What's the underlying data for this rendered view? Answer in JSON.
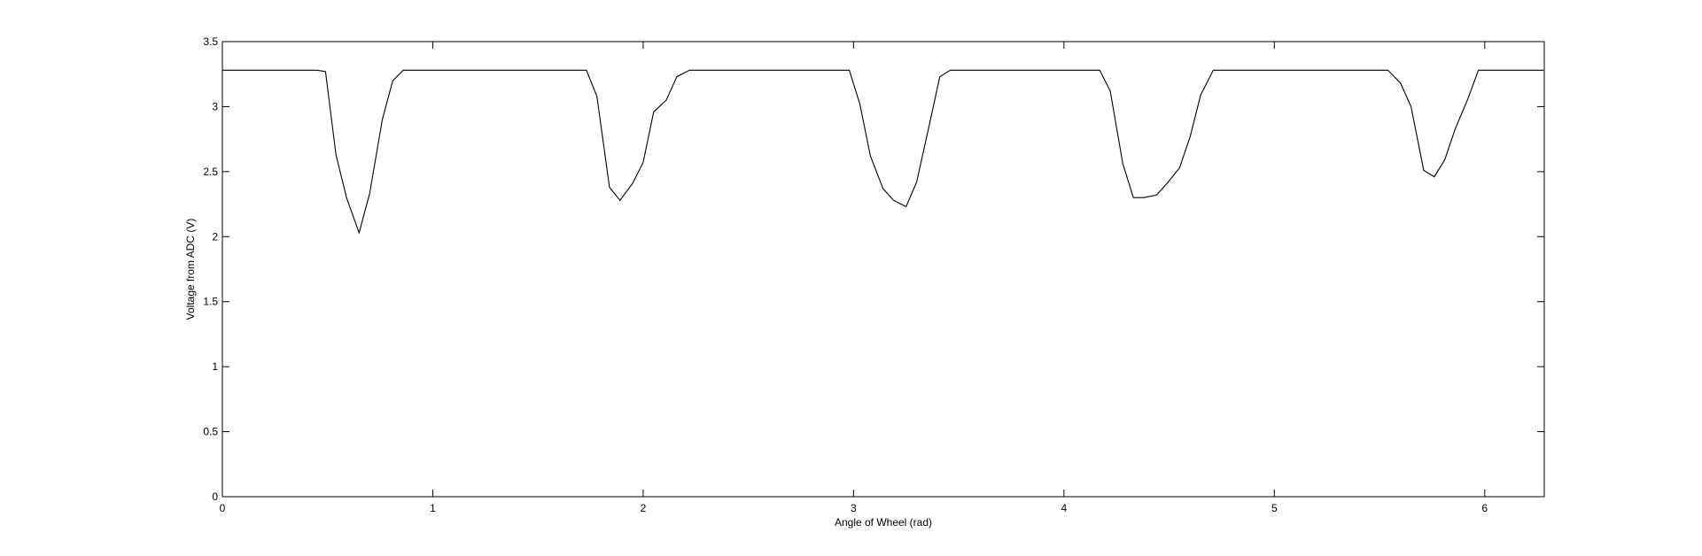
{
  "chart_data": {
    "type": "line",
    "title": "",
    "xlabel": "Angle of Wheel (rad)",
    "ylabel": "Voltage from ADC (V)",
    "xlim": [
      0,
      6.2832
    ],
    "ylim": [
      0,
      3.5
    ],
    "xticks": [
      0,
      1,
      2,
      3,
      4,
      5,
      6
    ],
    "yticks": [
      0,
      0.5,
      1,
      1.5,
      2,
      2.5,
      3,
      3.5
    ],
    "xtick_labels": [
      "0",
      "1",
      "2",
      "3",
      "4",
      "5",
      "6"
    ],
    "ytick_labels": [
      "0",
      "0.5",
      "1",
      "1.5",
      "2",
      "2.5",
      "3",
      "3.5"
    ],
    "grid": false,
    "legend": "none",
    "line_color": "#000000",
    "series": [
      {
        "x": [
          0.0,
          0.45,
          0.49,
          0.54,
          0.59,
          0.65,
          0.7,
          0.76,
          0.81,
          0.86,
          1.0,
          1.2,
          1.4,
          1.6,
          1.73,
          1.78,
          1.84,
          1.89,
          1.95,
          2.0,
          2.05,
          2.11,
          2.16,
          2.22,
          2.4,
          2.6,
          2.8,
          2.98,
          3.03,
          3.08,
          3.14,
          3.19,
          3.25,
          3.3,
          3.36,
          3.41,
          3.46,
          3.6,
          3.8,
          4.0,
          4.17,
          4.22,
          4.28,
          4.33,
          4.38,
          4.44,
          4.49,
          4.55,
          4.6,
          4.65,
          4.71,
          4.9,
          5.1,
          5.3,
          5.54,
          5.6,
          5.65,
          5.71,
          5.76,
          5.81,
          5.86,
          5.92,
          5.97,
          6.1,
          6.28
        ],
        "y": [
          3.28,
          3.28,
          3.27,
          2.63,
          2.3,
          2.03,
          2.33,
          2.9,
          3.2,
          3.28,
          3.28,
          3.28,
          3.28,
          3.28,
          3.28,
          3.08,
          2.38,
          2.28,
          2.41,
          2.57,
          2.96,
          3.05,
          3.23,
          3.28,
          3.28,
          3.28,
          3.28,
          3.28,
          3.02,
          2.62,
          2.37,
          2.28,
          2.23,
          2.42,
          2.86,
          3.23,
          3.28,
          3.28,
          3.28,
          3.28,
          3.28,
          3.12,
          2.56,
          2.3,
          2.3,
          2.32,
          2.41,
          2.53,
          2.77,
          3.09,
          3.28,
          3.28,
          3.28,
          3.28,
          3.28,
          3.18,
          3.0,
          2.51,
          2.46,
          2.59,
          2.83,
          3.06,
          3.28,
          3.28,
          3.28
        ]
      }
    ]
  }
}
